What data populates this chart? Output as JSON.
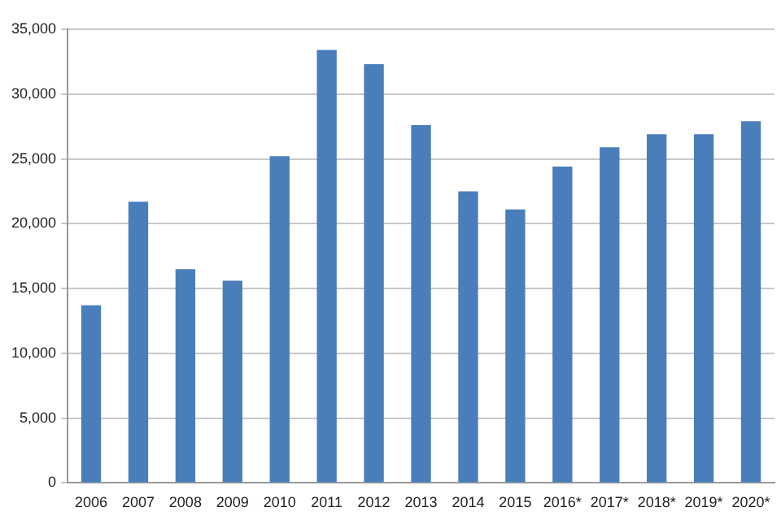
{
  "chart_data": {
    "type": "bar",
    "categories": [
      "2006",
      "2007",
      "2008",
      "2009",
      "2010",
      "2011",
      "2012",
      "2013",
      "2014",
      "2015",
      "2016*",
      "2017*",
      "2018*",
      "2019*",
      "2020*"
    ],
    "values": [
      13700,
      21700,
      16500,
      15600,
      25200,
      33400,
      32300,
      27600,
      22500,
      21100,
      24400,
      25900,
      26900,
      26900,
      27900
    ],
    "color": "#4a7ebb",
    "ylim": [
      0,
      35000
    ],
    "yticks": [
      {
        "value": 0,
        "label": "0"
      },
      {
        "value": 5000,
        "label": "5,000"
      },
      {
        "value": 10000,
        "label": "10,000"
      },
      {
        "value": 15000,
        "label": "15,000"
      },
      {
        "value": 20000,
        "label": "20,000"
      },
      {
        "value": 25000,
        "label": "25,000"
      },
      {
        "value": 30000,
        "label": "30,000"
      },
      {
        "value": 35000,
        "label": "35,000"
      }
    ],
    "grid": "y",
    "legend": false
  }
}
